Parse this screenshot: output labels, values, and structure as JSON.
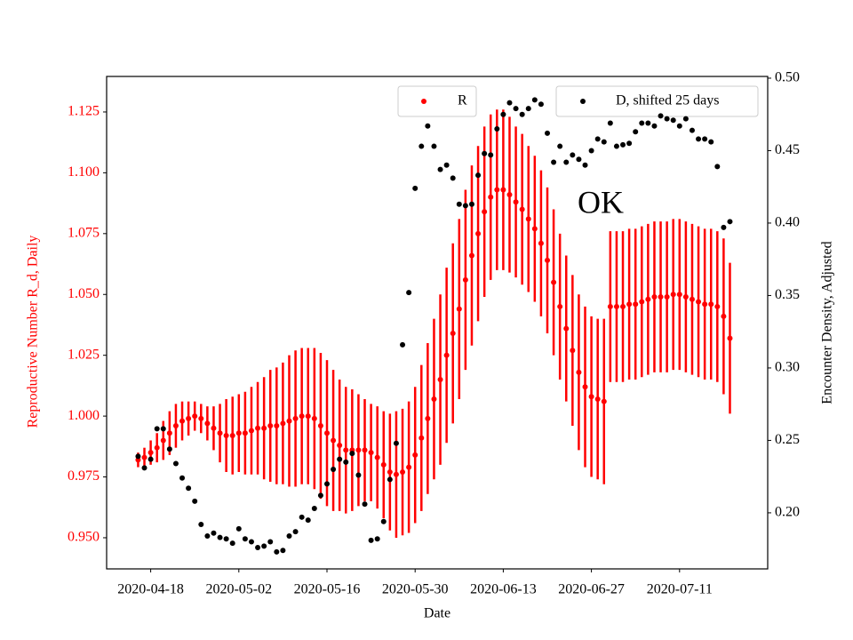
{
  "chart_data": {
    "type": "errorbar_dual",
    "x_label": "Date",
    "y_label": "Reproductive Number R_d, Daily",
    "y2_label": "Encounter Density, Adjusted",
    "annotation": "OK",
    "xlim": [
      "2020-04-11",
      "2020-07-25"
    ],
    "xticks": [
      "2020-04-18",
      "2020-05-02",
      "2020-05-16",
      "2020-05-30",
      "2020-06-13",
      "2020-06-27",
      "2020-07-11"
    ],
    "ylim": [
      0.9372,
      1.1396
    ],
    "yticks": [
      {
        "value": 0.95,
        "label": "0.950"
      },
      0.975,
      {
        "value": 1.0,
        "label": "1.000"
      },
      1.025,
      {
        "value": 1.05,
        "label": "1.050"
      },
      1.075,
      {
        "value": 1.1,
        "label": "1.100"
      },
      1.125
    ],
    "y2lim": [
      0.1613,
      0.5012
    ],
    "y2ticks": [
      {
        "value": 0.2,
        "label": "0.20"
      },
      0.25,
      {
        "value": 0.3,
        "label": "0.30"
      },
      0.35,
      {
        "value": 0.4,
        "label": "0.40"
      },
      0.45,
      {
        "value": 0.5,
        "label": "0.50"
      }
    ],
    "x": [
      "2020-04-16",
      "2020-04-17",
      "2020-04-18",
      "2020-04-19",
      "2020-04-20",
      "2020-04-21",
      "2020-04-22",
      "2020-04-23",
      "2020-04-24",
      "2020-04-25",
      "2020-04-26",
      "2020-04-27",
      "2020-04-28",
      "2020-04-29",
      "2020-04-30",
      "2020-05-01",
      "2020-05-02",
      "2020-05-03",
      "2020-05-04",
      "2020-05-05",
      "2020-05-06",
      "2020-05-07",
      "2020-05-08",
      "2020-05-09",
      "2020-05-10",
      "2020-05-11",
      "2020-05-12",
      "2020-05-13",
      "2020-05-14",
      "2020-05-15",
      "2020-05-16",
      "2020-05-17",
      "2020-05-18",
      "2020-05-19",
      "2020-05-20",
      "2020-05-21",
      "2020-05-22",
      "2020-05-23",
      "2020-05-24",
      "2020-05-25",
      "2020-05-26",
      "2020-05-27",
      "2020-05-28",
      "2020-05-29",
      "2020-05-30",
      "2020-05-31",
      "2020-06-01",
      "2020-06-02",
      "2020-06-03",
      "2020-06-04",
      "2020-06-05",
      "2020-06-06",
      "2020-06-07",
      "2020-06-08",
      "2020-06-09",
      "2020-06-10",
      "2020-06-11",
      "2020-06-12",
      "2020-06-13",
      "2020-06-14",
      "2020-06-15",
      "2020-06-16",
      "2020-06-17",
      "2020-06-18",
      "2020-06-19",
      "2020-06-20",
      "2020-06-21",
      "2020-06-22",
      "2020-06-23",
      "2020-06-24",
      "2020-06-25",
      "2020-06-26",
      "2020-06-27",
      "2020-06-28",
      "2020-06-29",
      "2020-06-30",
      "2020-07-01",
      "2020-07-02",
      "2020-07-03",
      "2020-07-04",
      "2020-07-05",
      "2020-07-06",
      "2020-07-07",
      "2020-07-08",
      "2020-07-09",
      "2020-07-10",
      "2020-07-11",
      "2020-07-12",
      "2020-07-13",
      "2020-07-14",
      "2020-07-15",
      "2020-07-16",
      "2020-07-17",
      "2020-07-18",
      "2020-07-19"
    ],
    "series": [
      {
        "name": "R",
        "color": "#ff0000",
        "values": [
          0.982,
          0.983,
          0.985,
          0.987,
          0.99,
          0.993,
          0.996,
          0.998,
          0.999,
          1.0,
          0.999,
          0.997,
          0.995,
          0.993,
          0.992,
          0.992,
          0.993,
          0.993,
          0.994,
          0.995,
          0.995,
          0.996,
          0.996,
          0.997,
          0.998,
          0.999,
          1.0,
          1.0,
          0.999,
          0.996,
          0.993,
          0.99,
          0.988,
          0.986,
          0.986,
          0.986,
          0.986,
          0.985,
          0.983,
          0.98,
          0.977,
          0.976,
          0.977,
          0.979,
          0.984,
          0.991,
          0.999,
          1.007,
          1.015,
          1.025,
          1.034,
          1.044,
          1.056,
          1.066,
          1.075,
          1.084,
          1.09,
          1.093,
          1.093,
          1.091,
          1.088,
          1.085,
          1.081,
          1.077,
          1.071,
          1.064,
          1.055,
          1.045,
          1.036,
          1.027,
          1.018,
          1.012,
          1.008,
          1.007,
          1.006,
          1.045,
          1.045,
          1.045,
          1.046,
          1.046,
          1.047,
          1.048,
          1.049,
          1.049,
          1.049,
          1.05,
          1.05,
          1.049,
          1.048,
          1.047,
          1.046,
          1.046,
          1.045,
          1.041,
          1.032
        ],
        "errors": [
          0.003,
          0.004,
          0.005,
          0.006,
          0.008,
          0.009,
          0.009,
          0.008,
          0.007,
          0.006,
          0.006,
          0.007,
          0.009,
          0.012,
          0.015,
          0.016,
          0.016,
          0.017,
          0.018,
          0.019,
          0.021,
          0.023,
          0.024,
          0.025,
          0.027,
          0.028,
          0.028,
          0.028,
          0.029,
          0.03,
          0.03,
          0.029,
          0.027,
          0.026,
          0.025,
          0.023,
          0.021,
          0.02,
          0.021,
          0.022,
          0.024,
          0.026,
          0.026,
          0.027,
          0.028,
          0.03,
          0.031,
          0.033,
          0.035,
          0.036,
          0.037,
          0.037,
          0.037,
          0.037,
          0.036,
          0.035,
          0.034,
          0.033,
          0.033,
          0.032,
          0.031,
          0.031,
          0.03,
          0.03,
          0.03,
          0.03,
          0.03,
          0.03,
          0.03,
          0.031,
          0.032,
          0.033,
          0.033,
          0.033,
          0.034,
          0.031,
          0.031,
          0.031,
          0.031,
          0.031,
          0.031,
          0.031,
          0.031,
          0.031,
          0.031,
          0.031,
          0.031,
          0.031,
          0.031,
          0.031,
          0.031,
          0.031,
          0.031,
          0.032,
          0.031
        ]
      },
      {
        "name": "D, shifted 25 days",
        "color": "#000000",
        "axis": "y2",
        "values": [
          0.239,
          0.231,
          0.237,
          0.258,
          0.258,
          0.244,
          0.234,
          0.224,
          0.217,
          0.208,
          0.192,
          0.184,
          0.186,
          0.183,
          0.182,
          0.179,
          0.189,
          0.182,
          0.18,
          0.176,
          0.177,
          0.18,
          0.173,
          0.174,
          0.184,
          0.187,
          0.197,
          0.195,
          0.203,
          0.212,
          0.22,
          0.23,
          0.237,
          0.235,
          0.241,
          0.226,
          0.206,
          0.181,
          0.182,
          0.194,
          0.223,
          0.248,
          0.316,
          0.352,
          0.424,
          0.453,
          0.467,
          0.453,
          0.437,
          0.44,
          0.431,
          0.413,
          0.412,
          0.413,
          0.433,
          0.448,
          0.447,
          0.465,
          0.475,
          0.483,
          0.479,
          0.475,
          0.479,
          0.485,
          0.482,
          0.462,
          0.442,
          0.453,
          0.442,
          0.447,
          0.444,
          0.44,
          0.45,
          0.458,
          0.456,
          0.469,
          0.453,
          0.454,
          0.455,
          0.463,
          0.469,
          0.469,
          0.467,
          0.474,
          0.472,
          0.471,
          0.467,
          0.472,
          0.464,
          0.458,
          0.458,
          0.456,
          0.439,
          0.397,
          0.401
        ]
      }
    ]
  }
}
